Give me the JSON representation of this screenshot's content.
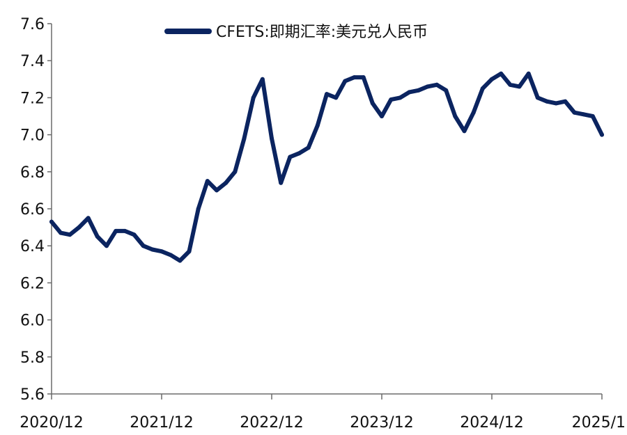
{
  "chart_data": {
    "type": "line",
    "title": "",
    "xlabel": "",
    "ylabel": "",
    "ylim": [
      5.6,
      7.6
    ],
    "y_ticks": [
      "5.6",
      "5.8",
      "6.0",
      "6.2",
      "6.4",
      "6.6",
      "6.8",
      "7.0",
      "7.2",
      "7.4",
      "7.6"
    ],
    "x_tick_labels": [
      "2020/12",
      "2021/12",
      "2022/12",
      "2023/12",
      "2024/12",
      "2025/1"
    ],
    "grid": false,
    "legend_position": "top-center",
    "series": [
      {
        "name": "CFETS:即期汇率:美元兑人民币",
        "color": "#0b2460",
        "x": [
          "2020-12",
          "2021-01",
          "2021-02",
          "2021-03",
          "2021-04",
          "2021-05",
          "2021-06",
          "2021-07",
          "2021-08",
          "2021-09",
          "2021-10",
          "2021-11",
          "2021-12",
          "2022-01",
          "2022-02",
          "2022-03",
          "2022-04",
          "2022-05",
          "2022-06",
          "2022-07",
          "2022-08",
          "2022-09",
          "2022-10",
          "2022-11",
          "2022-12",
          "2023-01",
          "2023-02",
          "2023-03",
          "2023-04",
          "2023-05",
          "2023-06",
          "2023-07",
          "2023-08",
          "2023-09",
          "2023-10",
          "2023-11",
          "2023-12",
          "2024-01",
          "2024-02",
          "2024-03",
          "2024-04",
          "2024-05",
          "2024-06",
          "2024-07",
          "2024-08",
          "2024-09",
          "2024-10",
          "2024-11",
          "2024-12",
          "2025-01",
          "2025-02",
          "2025-03",
          "2025-04",
          "2025-05",
          "2025-06",
          "2025-07",
          "2025-08",
          "2025-09",
          "2025-10",
          "2025-11",
          "2025-12"
        ],
        "values": [
          6.53,
          6.47,
          6.46,
          6.5,
          6.55,
          6.45,
          6.4,
          6.48,
          6.48,
          6.46,
          6.4,
          6.38,
          6.37,
          6.35,
          6.32,
          6.37,
          6.6,
          6.75,
          6.7,
          6.74,
          6.8,
          6.98,
          7.2,
          7.3,
          6.98,
          6.74,
          6.88,
          6.9,
          6.93,
          7.05,
          7.22,
          7.2,
          7.29,
          7.31,
          7.31,
          7.17,
          7.1,
          7.19,
          7.2,
          7.23,
          7.24,
          7.26,
          7.27,
          7.24,
          7.1,
          7.02,
          7.12,
          7.25,
          7.3,
          7.33,
          7.27,
          7.26,
          7.33,
          7.2,
          7.18,
          7.17,
          7.18,
          7.12,
          7.11,
          7.1,
          7.0
        ]
      }
    ]
  }
}
